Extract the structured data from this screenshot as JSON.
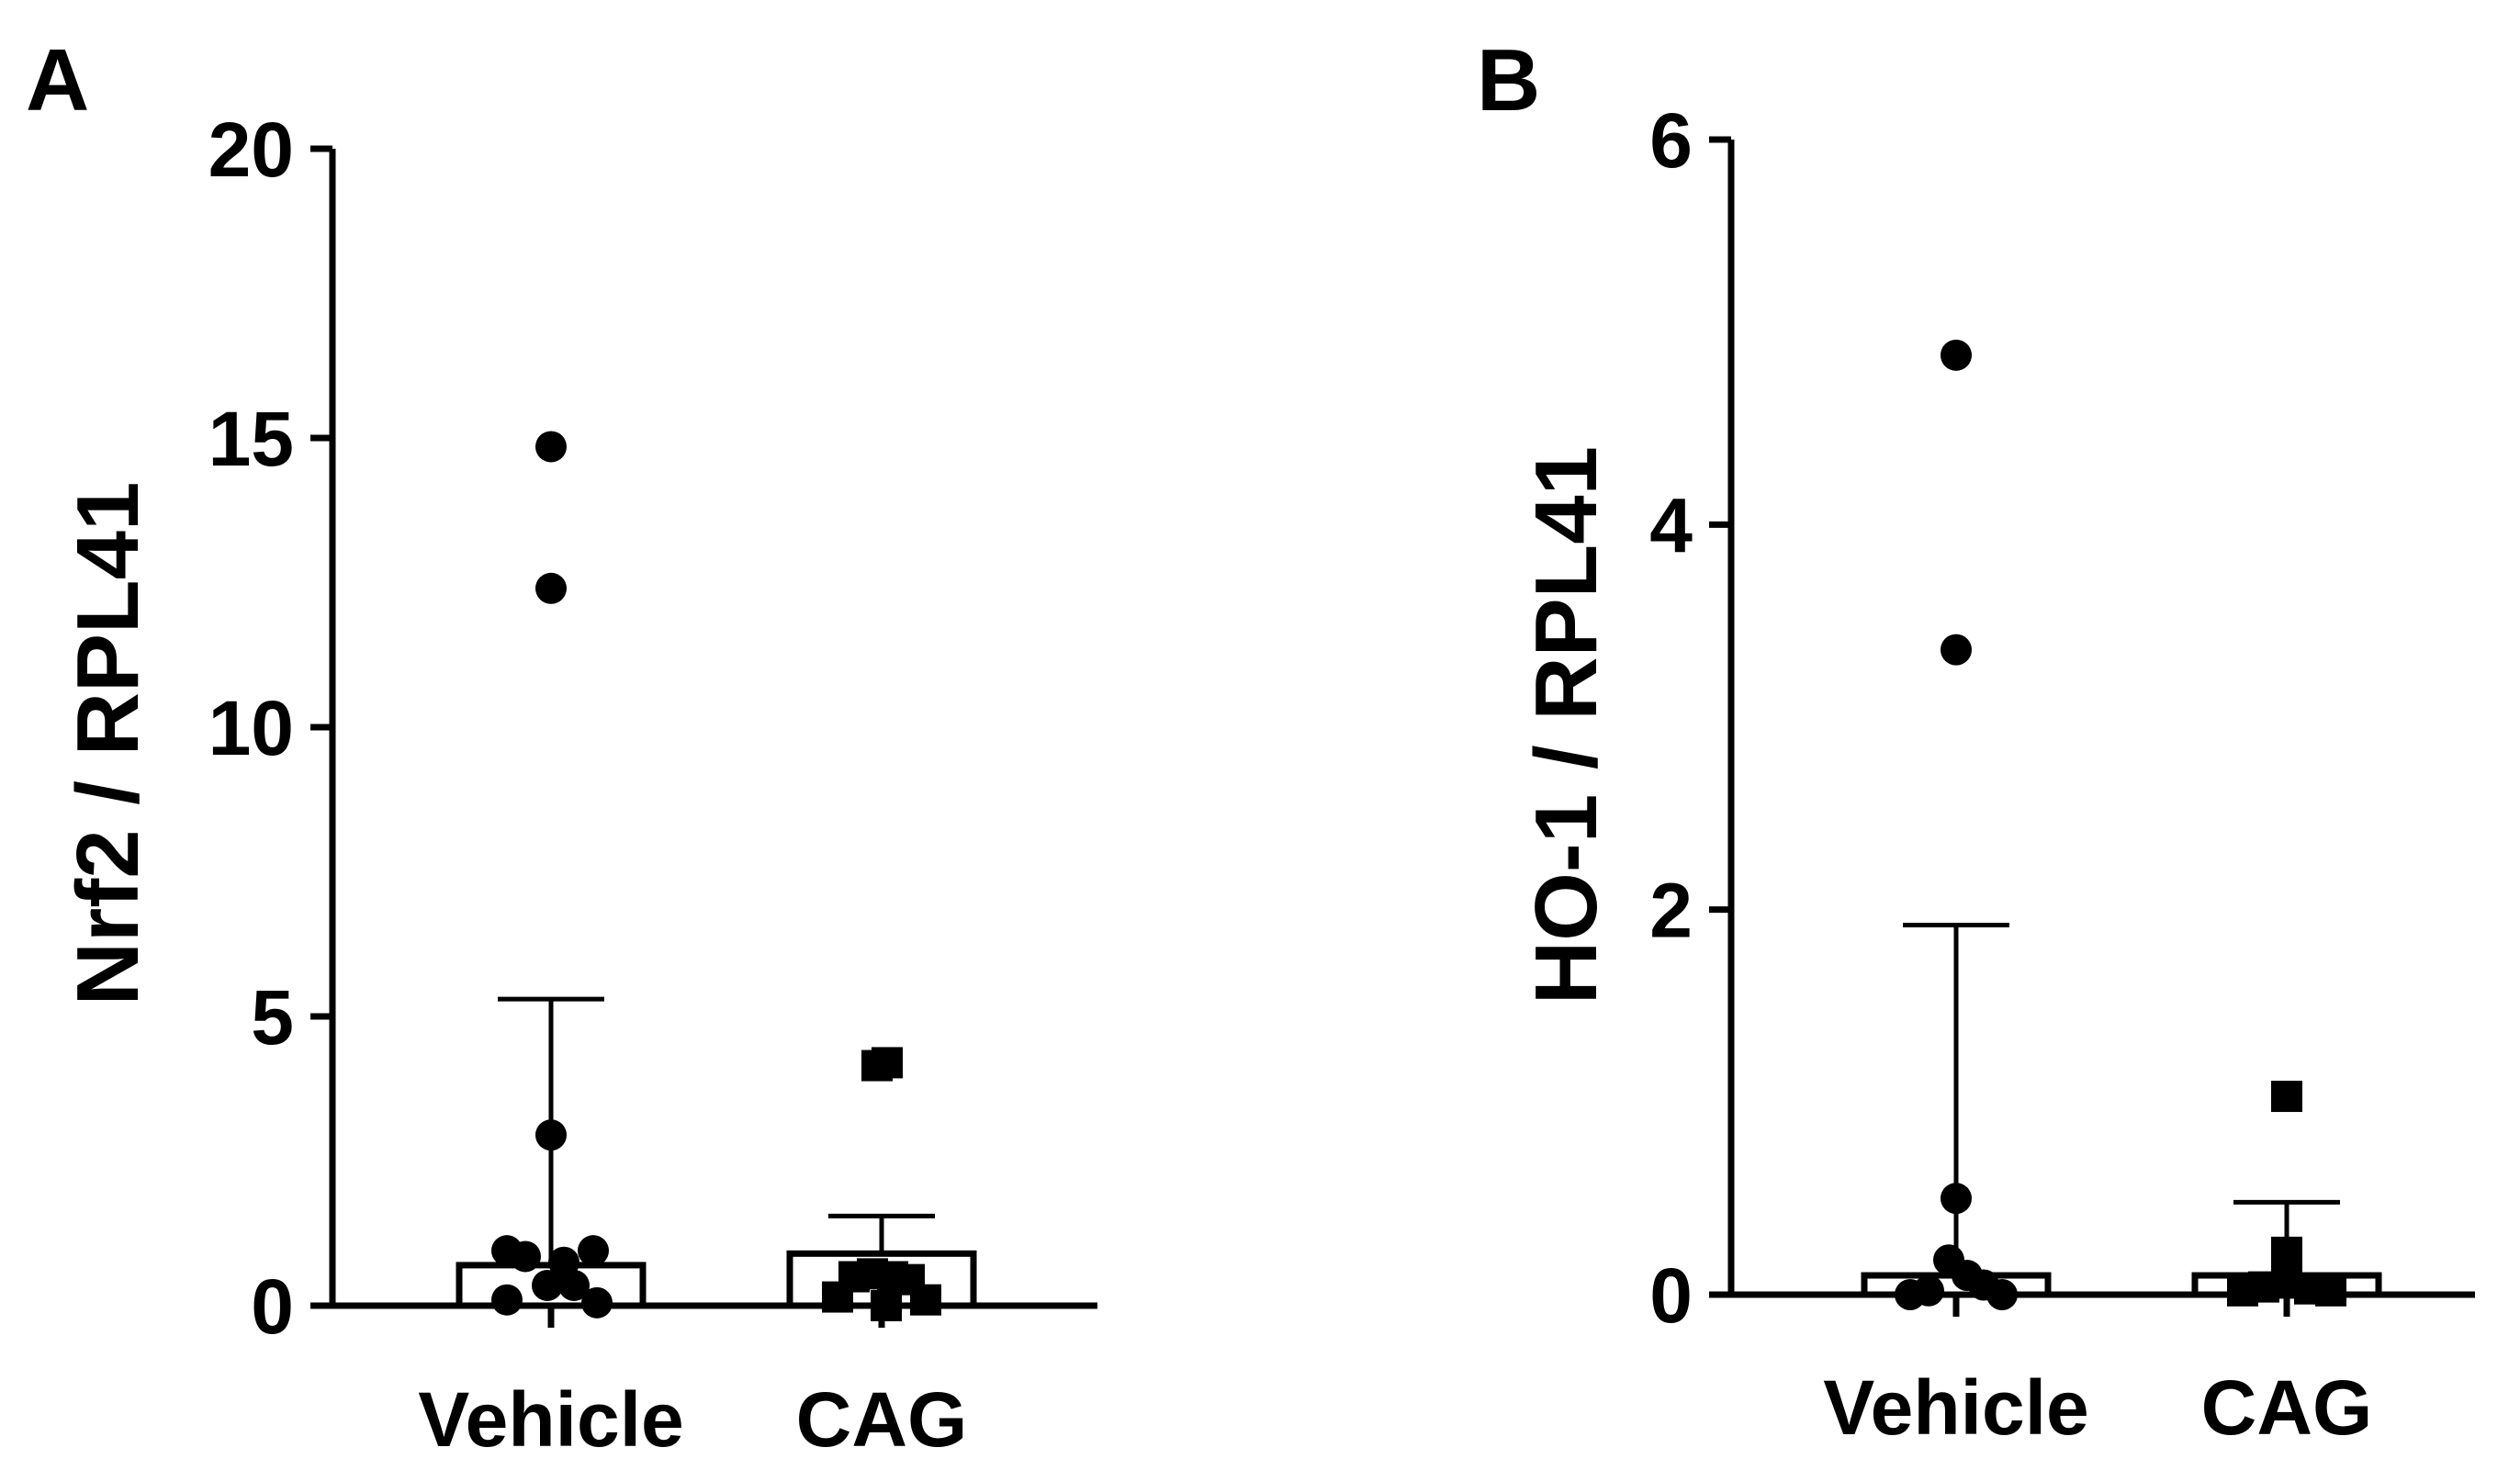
{
  "chart_data": [
    {
      "panel_label": "A",
      "type": "scatter",
      "ylabel": "Nrf2 / RPL41",
      "ylim": [
        0,
        20
      ],
      "yticks": [
        0,
        5,
        10,
        15,
        20
      ],
      "categories": [
        "Vehicle",
        "CAG"
      ],
      "series": [
        {
          "category": "Vehicle",
          "marker": "circle",
          "mean": 0.7,
          "sd_upper": 5.3,
          "points": [
            {
              "offset": -0.48,
              "y": 0.95
            },
            {
              "offset": 0.46,
              "y": 0.95
            },
            {
              "offset": -0.28,
              "y": 0.85
            },
            {
              "offset": 0.14,
              "y": 0.75
            },
            {
              "offset": -0.48,
              "y": 0.1
            },
            {
              "offset": 0.5,
              "y": 0.05
            },
            {
              "offset": -0.04,
              "y": 0.35
            },
            {
              "offset": 0.25,
              "y": 0.35
            },
            {
              "offset": 0.0,
              "y": 2.95
            },
            {
              "offset": 0.0,
              "y": 12.4
            },
            {
              "offset": 0.0,
              "y": 14.85
            }
          ]
        },
        {
          "category": "CAG",
          "marker": "square",
          "mean": 0.9,
          "sd_upper": 1.55,
          "points": [
            {
              "offset": -0.48,
              "y": 0.15
            },
            {
              "offset": -0.3,
              "y": 0.5
            },
            {
              "offset": -0.1,
              "y": 0.55
            },
            {
              "offset": 0.12,
              "y": 0.5
            },
            {
              "offset": 0.3,
              "y": 0.45
            },
            {
              "offset": 0.48,
              "y": 0.1
            },
            {
              "offset": 0.05,
              "y": 0.0
            },
            {
              "offset": -0.05,
              "y": 4.15
            },
            {
              "offset": 0.06,
              "y": 4.2
            }
          ]
        }
      ]
    },
    {
      "panel_label": "B",
      "type": "scatter",
      "ylabel": "HO-1 / RPL41",
      "ylim": [
        0,
        6
      ],
      "yticks": [
        0,
        2,
        4,
        6
      ],
      "categories": [
        "Vehicle",
        "CAG"
      ],
      "series": [
        {
          "category": "Vehicle",
          "marker": "circle",
          "mean": 0.1,
          "sd_upper": 1.92,
          "points": [
            {
              "offset": -0.5,
              "y": 0.0
            },
            {
              "offset": -0.3,
              "y": 0.02
            },
            {
              "offset": -0.08,
              "y": 0.18
            },
            {
              "offset": 0.12,
              "y": 0.1
            },
            {
              "offset": 0.3,
              "y": 0.05
            },
            {
              "offset": 0.5,
              "y": 0.0
            },
            {
              "offset": 0.0,
              "y": 0.5
            },
            {
              "offset": 0.0,
              "y": 3.35
            },
            {
              "offset": 0.0,
              "y": 4.88
            }
          ]
        },
        {
          "category": "CAG",
          "marker": "square",
          "mean": 0.1,
          "sd_upper": 0.48,
          "points": [
            {
              "offset": -0.48,
              "y": 0.02
            },
            {
              "offset": -0.25,
              "y": 0.04
            },
            {
              "offset": 0.0,
              "y": 0.22
            },
            {
              "offset": 0.0,
              "y": 0.06
            },
            {
              "offset": 0.25,
              "y": 0.03
            },
            {
              "offset": 0.48,
              "y": 0.02
            },
            {
              "offset": 0.0,
              "y": 1.03
            }
          ]
        }
      ]
    }
  ]
}
